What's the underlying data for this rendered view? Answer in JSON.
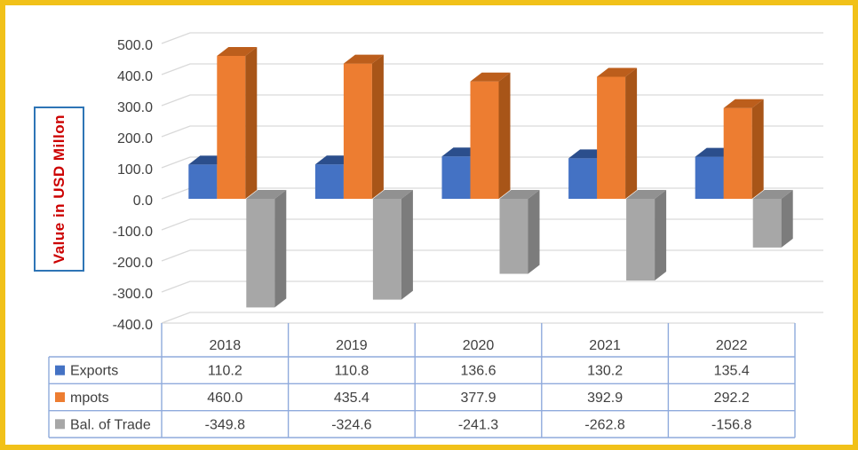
{
  "chart_data": {
    "type": "bar",
    "variant": "3d-clustered-column",
    "title": "",
    "y_axis_title": "Value in USD Millon",
    "categories": [
      "2018",
      "2019",
      "2020",
      "2021",
      "2022"
    ],
    "series": [
      {
        "name": "Exports",
        "values": [
          110.2,
          110.8,
          136.6,
          130.2,
          135.4
        ],
        "faces": {
          "front": "#4472C4",
          "top": "#2B4E8C",
          "side": "#2F5597"
        }
      },
      {
        "name": "mpots",
        "values": [
          460.0,
          435.4,
          377.9,
          392.9,
          292.2
        ],
        "faces": {
          "front": "#ED7D31",
          "top": "#BC5E1C",
          "side": "#A85518"
        }
      },
      {
        "name": "Bal. of Trade",
        "values": [
          -349.8,
          -324.6,
          -241.3,
          -262.8,
          -156.8
        ],
        "faces": {
          "front": "#A7A7A7",
          "top": "#919191",
          "side": "#7C7C7C"
        }
      }
    ],
    "ylim": [
      -400,
      500
    ],
    "y_tick_step": 100,
    "y_tick_labels": [
      "500.0",
      "400.0",
      "300.0",
      "200.0",
      "100.0",
      "0.0",
      "-100.0",
      "-200.0",
      "-300.0",
      "-400.0"
    ],
    "grid": true,
    "legend_position": "data-table-left",
    "data_table": {
      "columns": [
        "2018",
        "2019",
        "2020",
        "2021",
        "2022"
      ],
      "row_headers": [
        "Exports",
        "mpots",
        "Bal. of Trade"
      ],
      "cells": [
        [
          "110.2",
          "110.8",
          "136.6",
          "130.2",
          "135.4"
        ],
        [
          "460.0",
          "435.4",
          "377.9",
          "392.9",
          "292.2"
        ],
        [
          "-349.8",
          "-324.6",
          "-241.3",
          "-262.8",
          "-156.8"
        ]
      ]
    }
  },
  "colors": {
    "frame_border": "#F1C119",
    "plot_gridline": "#D9D9D9",
    "table_border": "#8FAADC",
    "text": "#404040",
    "axis_title_text": "#CC0000",
    "axis_title_border": "#2E75B6",
    "background": "#FFFFFF"
  }
}
